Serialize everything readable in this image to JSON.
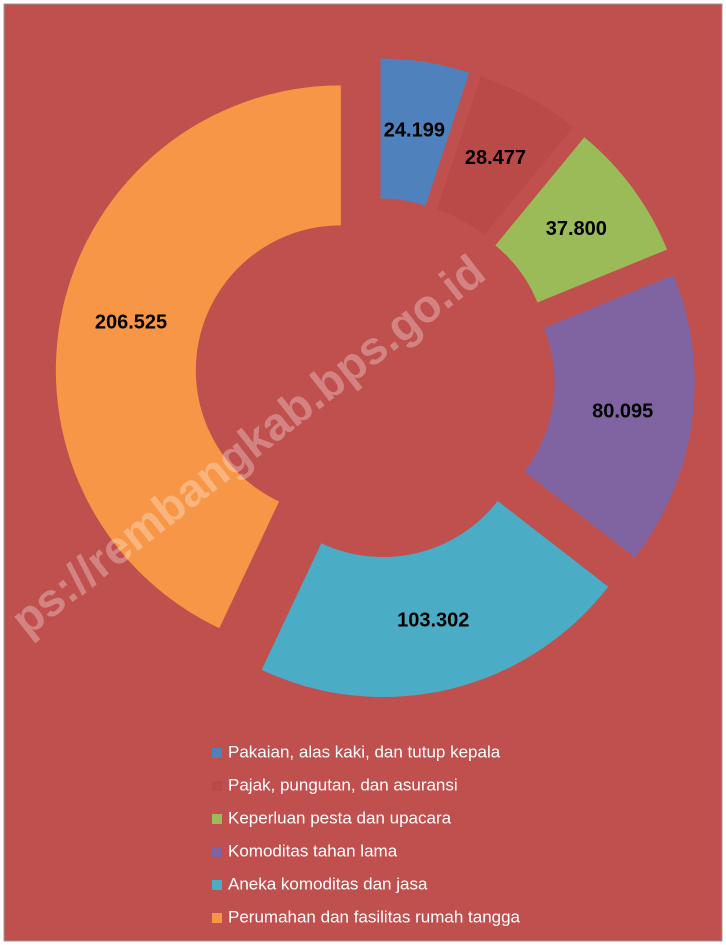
{
  "chart_data": {
    "type": "donut",
    "watermark": "ps://rembangkab.bps.go.id",
    "categories": [
      "Pakaian, alas kaki, dan tutup kepala",
      "Pajak, pungutan, dan asuransi",
      "Keperluan pesta dan upacara",
      "Komoditas tahan lama",
      "Aneka komoditas dan jasa",
      "Perumahan dan fasilitas rumah tangga"
    ],
    "values": [
      24.199,
      28.477,
      37.8,
      80.095,
      103.302,
      206.525
    ],
    "value_labels": [
      "24.199",
      "28.477",
      "37.800",
      "80.095",
      "103.302",
      "206.525"
    ],
    "colors": [
      "#4f81bd",
      "#b94a48",
      "#9bbb59",
      "#8064a2",
      "#4bacc6",
      "#f79646"
    ],
    "legend": "bottom"
  }
}
